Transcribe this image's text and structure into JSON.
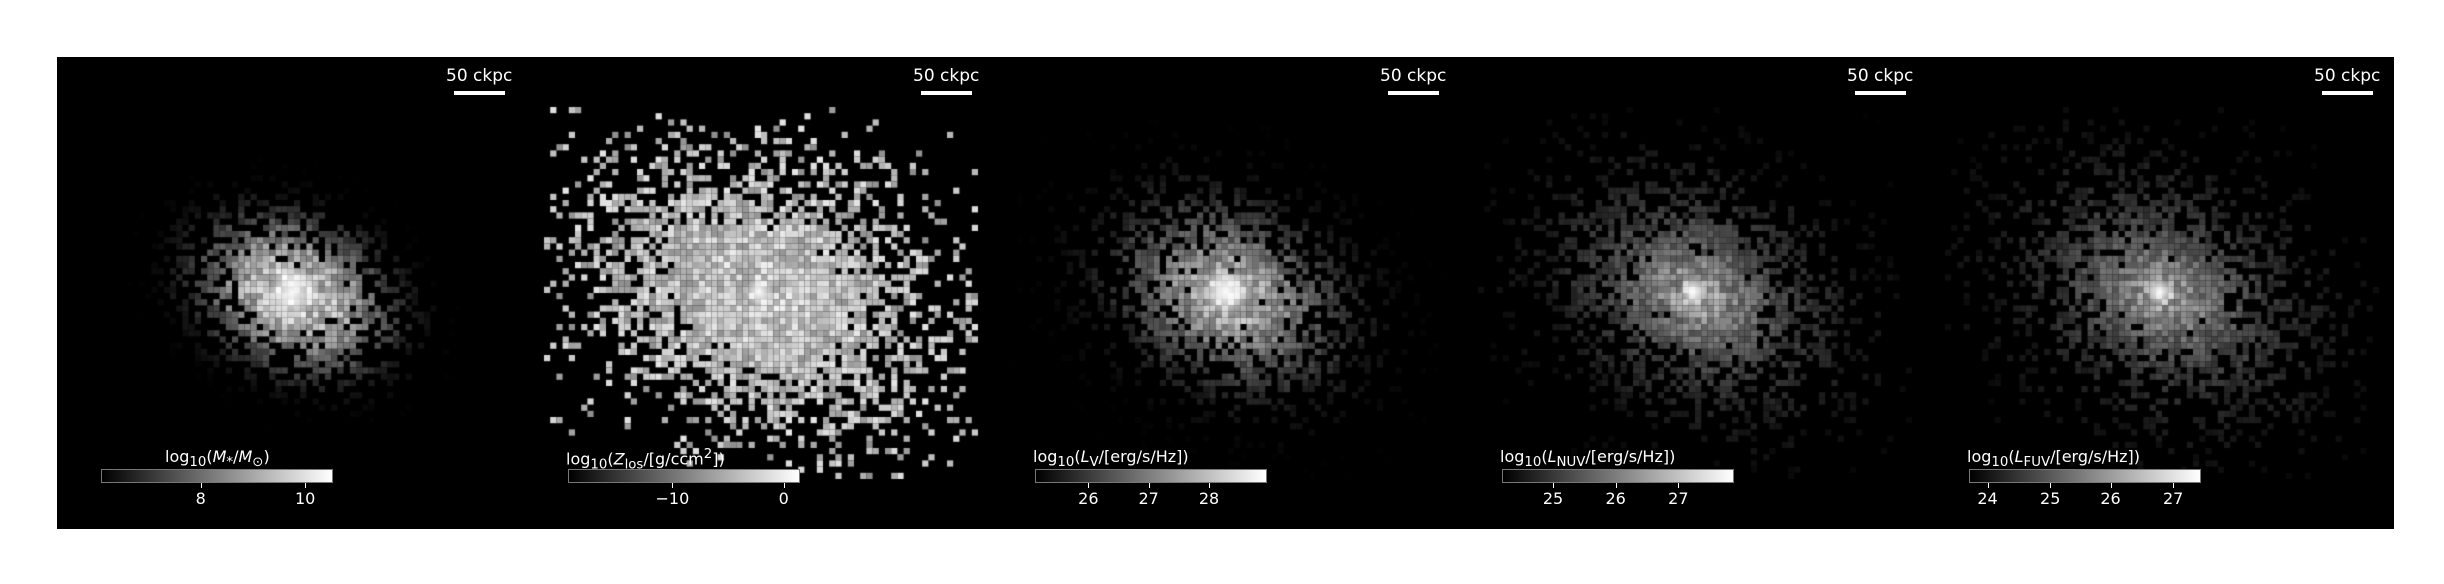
{
  "panels": [
    {
      "scalebar": "50 ckpc",
      "colorbar_label": "log10(M*/M⊙)",
      "label_html": "log<sub>10</sub>(<i>M</i><sub>*</sub>/<i>M</i><sub>⊙</sub>)",
      "ticks": [
        "8",
        "10"
      ],
      "tick_fracs": [
        0.43,
        0.88
      ],
      "spread": 0.45,
      "gamma": 2.6,
      "fill": 0.55,
      "brightness": 1.0
    },
    {
      "scalebar": "50 ckpc",
      "colorbar_label": "log10(Z_los/[g/ccm^2])",
      "label_html": "log<sub>10</sub>(<i>Z</i><sub>los</sub>/[g/ccm<sup>2</sup>])",
      "ticks": [
        "−10",
        "0"
      ],
      "tick_fracs": [
        0.45,
        0.93
      ],
      "spread": 1.0,
      "gamma": 0.6,
      "fill": 0.85,
      "brightness": 0.85
    },
    {
      "scalebar": "50 ckpc",
      "colorbar_label": "log10(L_V/[erg/s/Hz])",
      "label_html": "log<sub>10</sub>(<i>L</i><sub>V</sub>/[erg/s/Hz])",
      "ticks": [
        "26",
        "27",
        "28"
      ],
      "tick_fracs": [
        0.23,
        0.49,
        0.75
      ],
      "spread": 0.75,
      "gamma": 1.8,
      "fill": 0.55,
      "brightness": 0.95
    },
    {
      "scalebar": "50 ckpc",
      "colorbar_label": "log10(L_NUV/[erg/s/Hz])",
      "label_html": "log<sub>10</sub>(<i>L</i><sub>NUV</sub>/[erg/s/Hz])",
      "ticks": [
        "25",
        "26",
        "27"
      ],
      "tick_fracs": [
        0.22,
        0.49,
        0.76
      ],
      "spread": 0.9,
      "gamma": 1.1,
      "fill": 0.6,
      "brightness": 0.95
    },
    {
      "scalebar": "50 ckpc",
      "colorbar_label": "log10(L_FUV/[erg/s/Hz])",
      "label_html": "log<sub>10</sub>(<i>L</i><sub>FUV</sub>/[erg/s/Hz])",
      "ticks": [
        "24",
        "25",
        "26",
        "27"
      ],
      "tick_fracs": [
        0.08,
        0.35,
        0.61,
        0.88
      ],
      "spread": 0.95,
      "gamma": 1.0,
      "fill": 0.6,
      "brightness": 0.95
    }
  ]
}
